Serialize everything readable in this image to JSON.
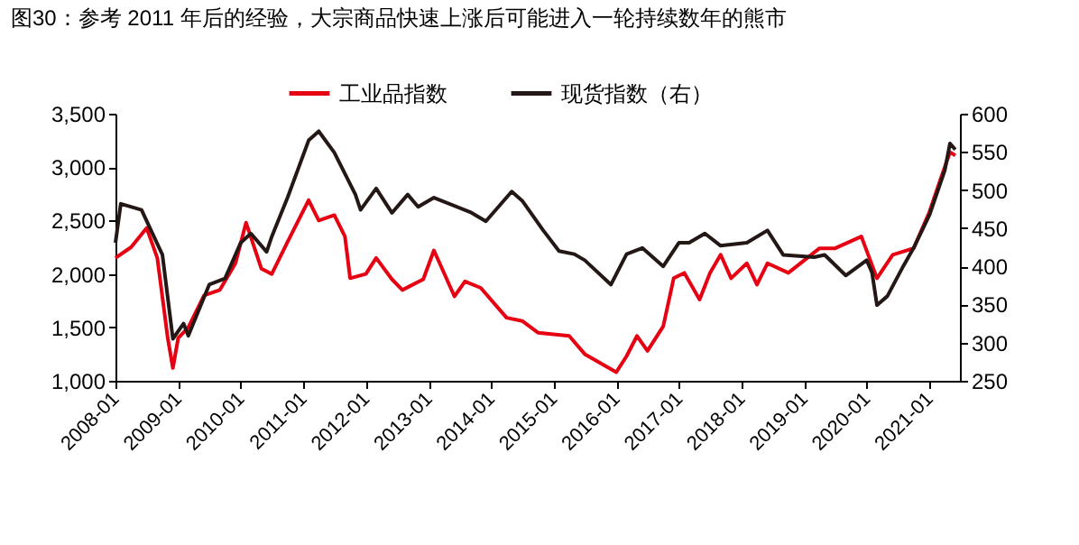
{
  "chart_data": {
    "type": "line",
    "title": "图30：参考 2011 年后的经验，大宗商品快速上涨后可能进入一轮持续数年的熊市",
    "xlim": [
      "2008-01",
      "2021-06-28"
    ],
    "xticks": [
      "2008-01",
      "2009-01",
      "2010-01",
      "2011-01",
      "2012-01",
      "2013-01",
      "2014-01",
      "2015-01",
      "2016-01",
      "2017-01",
      "2018-01",
      "2019-01",
      "2020-01",
      "2021-01"
    ],
    "ylim": [
      1000,
      3500
    ],
    "yticks": [
      {
        "value": 1000,
        "label": "1,000"
      },
      {
        "value": 1500,
        "label": "1,500"
      },
      {
        "value": 2000,
        "label": "2,000"
      },
      {
        "value": 2500,
        "label": "2,500"
      },
      {
        "value": 3000,
        "label": "3,000"
      },
      {
        "value": 3500,
        "label": "3,500"
      }
    ],
    "y2lim": [
      250,
      600
    ],
    "y2ticks": [
      250,
      300,
      350,
      400,
      450,
      500,
      550,
      600
    ],
    "legend": "top",
    "grid": false,
    "marker": "none",
    "line_style": "solid",
    "series": [
      {
        "name": "工业品指数",
        "color": "#e60012",
        "x": [
          "2008-01",
          "2008-04",
          "2008-07",
          "2008-09",
          "2008-11",
          "2008-12",
          "2009-01",
          "2009-03",
          "2009-06",
          "2009-09",
          "2009-12",
          "2010-02",
          "2010-05",
          "2010-07",
          "2010-10",
          "2011-02",
          "2011-04",
          "2011-07",
          "2011-09",
          "2011-10",
          "2012-01",
          "2012-03",
          "2012-06",
          "2012-08",
          "2012-12",
          "2013-02",
          "2013-06",
          "2013-08",
          "2013-11",
          "2014-04",
          "2014-07",
          "2014-10",
          "2015-04",
          "2015-07",
          "2016-01",
          "2016-03",
          "2016-05",
          "2016-07",
          "2016-10",
          "2016-12",
          "2017-02",
          "2017-05",
          "2017-07",
          "2017-09",
          "2017-11",
          "2018-02",
          "2018-04",
          "2018-06",
          "2018-10",
          "2019-04",
          "2019-07",
          "2019-12",
          "2020-03",
          "2020-06",
          "2020-10",
          "2021-01",
          "2021-03",
          "2021-05",
          "2021-06"
        ],
        "values": [
          2150,
          2250,
          2430,
          2150,
          1400,
          1120,
          1400,
          1500,
          1800,
          1850,
          2100,
          2480,
          2050,
          2000,
          2300,
          2690,
          2500,
          2550,
          2350,
          1960,
          2000,
          2150,
          1950,
          1850,
          1950,
          2220,
          1790,
          1930,
          1870,
          1590,
          1560,
          1450,
          1420,
          1250,
          1080,
          1230,
          1420,
          1280,
          1510,
          1960,
          2010,
          1760,
          2010,
          2180,
          1960,
          2100,
          1900,
          2100,
          2010,
          2240,
          2240,
          2350,
          1960,
          2180,
          2240,
          2580,
          2860,
          3140,
          3110
        ]
      },
      {
        "name": "现货指数（右）",
        "color": "#231815",
        "axis": "y2",
        "x": [
          "2008-01",
          "2008-02",
          "2008-06",
          "2008-10",
          "2008-12",
          "2009-02",
          "2009-03",
          "2009-07",
          "2009-10",
          "2010-01",
          "2010-03",
          "2010-06",
          "2010-07",
          "2010-10",
          "2011-02",
          "2011-04",
          "2011-07",
          "2011-11",
          "2011-12",
          "2012-03",
          "2012-06",
          "2012-09",
          "2012-11",
          "2013-02",
          "2013-09",
          "2013-12",
          "2014-05",
          "2014-07",
          "2014-11",
          "2015-02",
          "2015-05",
          "2015-07",
          "2015-12",
          "2016-03",
          "2016-06",
          "2016-10",
          "2017-01",
          "2017-03",
          "2017-06",
          "2017-09",
          "2018-02",
          "2018-06",
          "2018-09",
          "2019-03",
          "2019-05",
          "2019-09",
          "2020-01",
          "2020-02",
          "2020-03",
          "2020-05",
          "2020-08",
          "2020-10",
          "2021-01",
          "2021-04",
          "2021-05",
          "2021-06"
        ],
        "values": [
          431,
          482,
          474,
          415,
          305,
          325,
          309,
          376,
          384,
          431,
          443,
          419,
          439,
          490,
          565,
          577,
          549,
          494,
          474,
          502,
          470,
          494,
          478,
          490,
          471,
          459,
          498,
          486,
          447,
          420,
          416,
          408,
          376,
          416,
          424,
          400,
          431,
          431,
          443,
          427,
          431,
          447,
          415,
          412,
          415,
          388,
          408,
          392,
          349,
          361,
          400,
          424,
          467,
          526,
          561,
          553
        ]
      }
    ]
  }
}
